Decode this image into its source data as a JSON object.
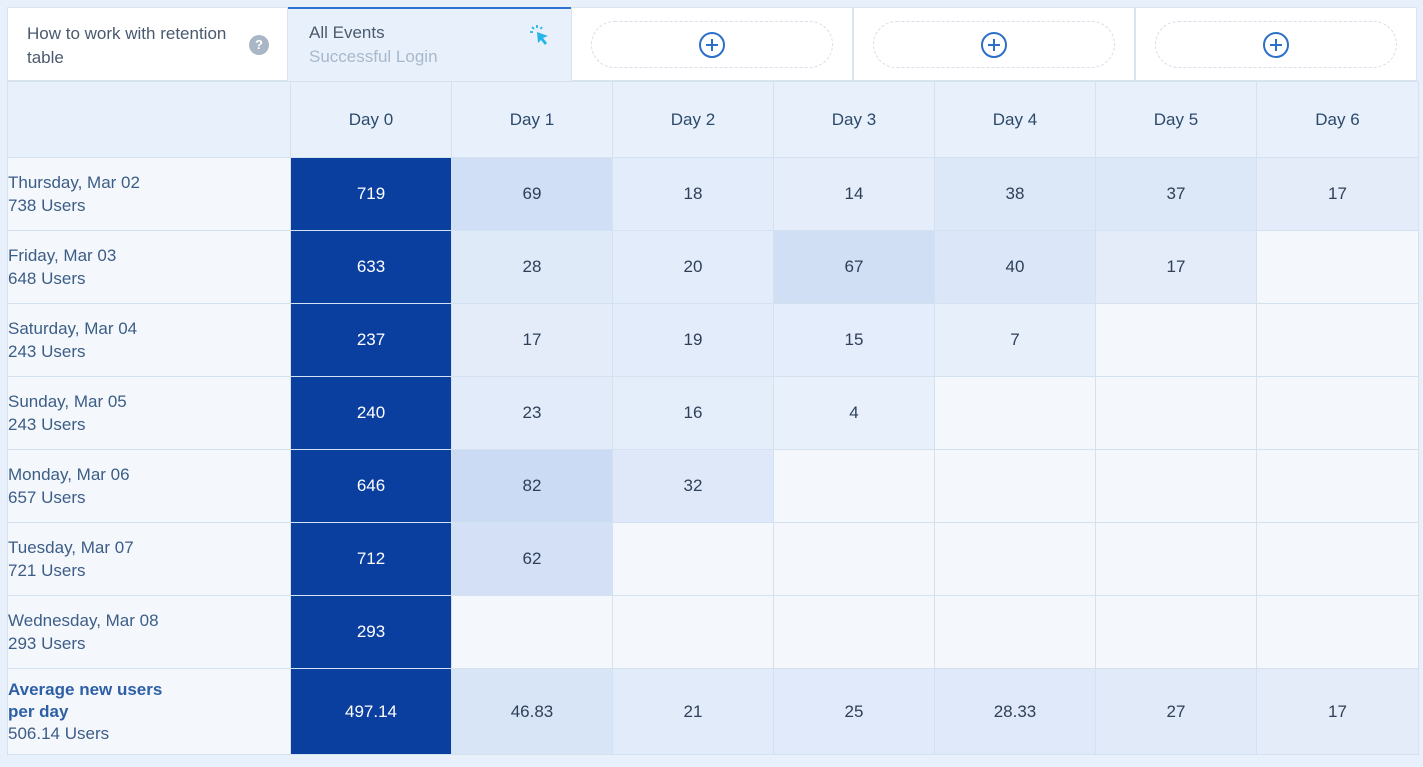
{
  "help": {
    "text": "How to work with retention table",
    "icon": "question-icon",
    "icon_glyph": "?"
  },
  "event": {
    "title": "All Events",
    "subtitle": "Successful Login",
    "icon": "cursor-click-icon"
  },
  "add_slots": [
    {
      "icon": "plus-circle-icon"
    },
    {
      "icon": "plus-circle-icon"
    },
    {
      "icon": "plus-circle-icon"
    }
  ],
  "table": {
    "columns": [
      "Day 0",
      "Day 1",
      "Day 2",
      "Day 3",
      "Day 4",
      "Day 5",
      "Day 6"
    ],
    "rows": [
      {
        "date": "Thursday, Mar 02",
        "users": "738 Users",
        "values": [
          "719",
          "69",
          "18",
          "14",
          "38",
          "37",
          "17"
        ]
      },
      {
        "date": "Friday, Mar 03",
        "users": "648 Users",
        "values": [
          "633",
          "28",
          "20",
          "67",
          "40",
          "17",
          ""
        ]
      },
      {
        "date": "Saturday, Mar 04",
        "users": "243 Users",
        "values": [
          "237",
          "17",
          "19",
          "15",
          "7",
          "",
          ""
        ]
      },
      {
        "date": "Sunday, Mar 05",
        "users": "243 Users",
        "values": [
          "240",
          "23",
          "16",
          "4",
          "",
          "",
          ""
        ]
      },
      {
        "date": "Monday, Mar 06",
        "users": "657 Users",
        "values": [
          "646",
          "82",
          "32",
          "",
          "",
          "",
          ""
        ]
      },
      {
        "date": "Tuesday, Mar 07",
        "users": "721 Users",
        "values": [
          "712",
          "62",
          "",
          "",
          "",
          "",
          ""
        ]
      },
      {
        "date": "Wednesday, Mar 08",
        "users": "293 Users",
        "values": [
          "293",
          "",
          "",
          "",
          "",
          "",
          ""
        ]
      }
    ],
    "average": {
      "title_line1": "Average new users",
      "title_line2": "per day",
      "users": "506.14 Users",
      "values": [
        "497.14",
        "46.83",
        "21",
        "25",
        "28.33",
        "27",
        "17"
      ]
    }
  },
  "colors": {
    "accent": "#2f73d0",
    "day0": "#0a3fa0",
    "header_bg": "#e8f1fb"
  }
}
